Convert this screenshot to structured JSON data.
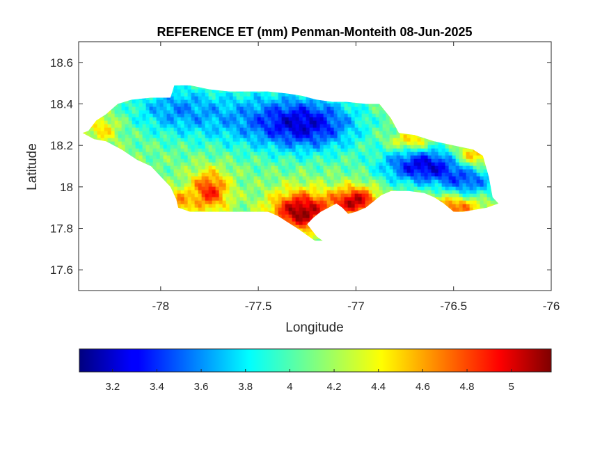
{
  "chart_data": {
    "type": "heatmap",
    "title": "REFERENCE ET (mm) Penman-Monteith 08-Jun-2025",
    "xlabel": "Longitude",
    "ylabel": "Latitude",
    "xlim": [
      -78.42,
      -76.0
    ],
    "ylim": [
      17.5,
      18.7
    ],
    "xticks": [
      -78,
      -77.5,
      -77,
      -76.5,
      -76
    ],
    "xtick_labels": [
      "-78",
      "-77.5",
      "-77",
      "-76.5",
      "-76"
    ],
    "yticks": [
      17.6,
      17.8,
      18.0,
      18.2,
      18.4,
      18.6
    ],
    "ytick_labels": [
      "17.6",
      "17.8",
      "18",
      "18.2",
      "18.4",
      "18.6"
    ],
    "colormap": "jet",
    "colorbar": {
      "location": "south",
      "range": [
        3.05,
        5.18
      ],
      "ticks": [
        3.2,
        3.4,
        3.6,
        3.8,
        4.0,
        4.2,
        4.4,
        4.6,
        4.8,
        5.0
      ],
      "tick_labels": [
        "3.2",
        "3.4",
        "3.6",
        "3.8",
        "4",
        "4.2",
        "4.4",
        "4.6",
        "4.8",
        "5"
      ]
    },
    "grid": false,
    "outline": [
      [
        -78.37,
        18.27
      ],
      [
        -78.33,
        18.32
      ],
      [
        -78.28,
        18.35
      ],
      [
        -78.22,
        18.4
      ],
      [
        -78.15,
        18.42
      ],
      [
        -78.05,
        18.43
      ],
      [
        -77.95,
        18.43
      ],
      [
        -77.93,
        18.49
      ],
      [
        -77.85,
        18.49
      ],
      [
        -77.75,
        18.47
      ],
      [
        -77.65,
        18.46
      ],
      [
        -77.55,
        18.46
      ],
      [
        -77.45,
        18.46
      ],
      [
        -77.35,
        18.45
      ],
      [
        -77.28,
        18.44
      ],
      [
        -77.2,
        18.42
      ],
      [
        -77.12,
        18.41
      ],
      [
        -77.05,
        18.41
      ],
      [
        -76.95,
        18.4
      ],
      [
        -76.88,
        18.4
      ],
      [
        -76.82,
        18.33
      ],
      [
        -76.78,
        18.26
      ],
      [
        -76.7,
        18.25
      ],
      [
        -76.6,
        18.22
      ],
      [
        -76.5,
        18.2
      ],
      [
        -76.4,
        18.18
      ],
      [
        -76.35,
        18.15
      ],
      [
        -76.32,
        18.05
      ],
      [
        -76.3,
        17.95
      ],
      [
        -76.27,
        17.92
      ],
      [
        -76.33,
        17.9
      ],
      [
        -76.45,
        17.88
      ],
      [
        -76.5,
        17.88
      ],
      [
        -76.55,
        17.92
      ],
      [
        -76.6,
        17.95
      ],
      [
        -76.65,
        17.97
      ],
      [
        -76.73,
        17.98
      ],
      [
        -76.82,
        17.98
      ],
      [
        -76.87,
        17.96
      ],
      [
        -76.95,
        17.9
      ],
      [
        -77.0,
        17.88
      ],
      [
        -77.04,
        17.87
      ],
      [
        -77.07,
        17.9
      ],
      [
        -77.1,
        17.92
      ],
      [
        -77.14,
        17.9
      ],
      [
        -77.18,
        17.88
      ],
      [
        -77.22,
        17.85
      ],
      [
        -77.25,
        17.82
      ],
      [
        -77.2,
        17.76
      ],
      [
        -77.17,
        17.74
      ],
      [
        -77.21,
        17.74
      ],
      [
        -77.27,
        17.78
      ],
      [
        -77.3,
        17.8
      ],
      [
        -77.35,
        17.83
      ],
      [
        -77.4,
        17.86
      ],
      [
        -77.45,
        17.88
      ],
      [
        -77.55,
        17.88
      ],
      [
        -77.65,
        17.88
      ],
      [
        -77.75,
        17.88
      ],
      [
        -77.85,
        17.88
      ],
      [
        -77.91,
        17.9
      ],
      [
        -77.92,
        17.94
      ],
      [
        -77.95,
        18.0
      ],
      [
        -78.0,
        18.05
      ],
      [
        -78.05,
        18.1
      ],
      [
        -78.12,
        18.13
      ],
      [
        -78.2,
        18.18
      ],
      [
        -78.28,
        18.22
      ],
      [
        -78.34,
        18.23
      ],
      [
        -78.4,
        18.26
      ]
    ],
    "field_base": 4.1,
    "field_features": [
      {
        "lon": -77.25,
        "lat": 18.3,
        "sx": 0.18,
        "sy": 0.09,
        "amp": -0.75
      },
      {
        "lon": -77.6,
        "lat": 18.33,
        "sx": 0.25,
        "sy": 0.1,
        "amp": -0.35
      },
      {
        "lon": -77.95,
        "lat": 18.38,
        "sx": 0.15,
        "sy": 0.08,
        "amp": -0.35
      },
      {
        "lon": -76.65,
        "lat": 18.1,
        "sx": 0.15,
        "sy": 0.06,
        "amp": -0.85
      },
      {
        "lon": -76.42,
        "lat": 18.02,
        "sx": 0.1,
        "sy": 0.05,
        "amp": -0.5
      },
      {
        "lon": -77.28,
        "lat": 17.88,
        "sx": 0.11,
        "sy": 0.07,
        "amp": 1.05
      },
      {
        "lon": -77.0,
        "lat": 17.93,
        "sx": 0.08,
        "sy": 0.05,
        "amp": 0.95
      },
      {
        "lon": -77.75,
        "lat": 17.98,
        "sx": 0.07,
        "sy": 0.07,
        "amp": 0.75
      },
      {
        "lon": -77.92,
        "lat": 17.92,
        "sx": 0.05,
        "sy": 0.04,
        "amp": 0.55
      },
      {
        "lon": -76.52,
        "lat": 17.9,
        "sx": 0.12,
        "sy": 0.04,
        "amp": 0.65
      },
      {
        "lon": -76.4,
        "lat": 18.15,
        "sx": 0.07,
        "sy": 0.04,
        "amp": 0.55
      },
      {
        "lon": -76.72,
        "lat": 18.22,
        "sx": 0.07,
        "sy": 0.03,
        "amp": 0.45
      },
      {
        "lon": -78.3,
        "lat": 18.28,
        "sx": 0.06,
        "sy": 0.05,
        "amp": 0.35
      }
    ]
  }
}
